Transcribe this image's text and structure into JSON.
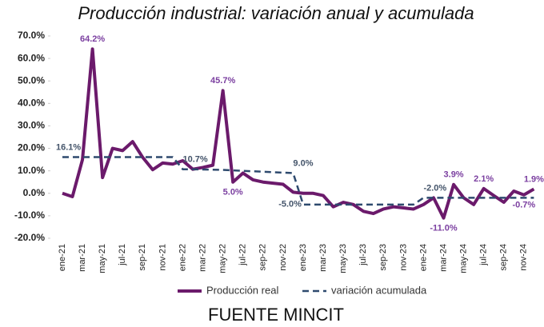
{
  "chart_data": {
    "type": "line",
    "title": "Producción industrial: variación anual y acumulada",
    "footer": "FUENTE MINCIT",
    "categories": [
      "ene-21",
      null,
      "mar-21",
      null,
      "may-21",
      null,
      "jul-21",
      null,
      "sep-21",
      null,
      "nov-21",
      null,
      "ene-22",
      null,
      "mar-22",
      null,
      "may-22",
      null,
      "jul-22",
      null,
      "sep-22",
      null,
      "nov-22",
      null,
      "ene-23",
      null,
      "mar-23",
      null,
      "may-23",
      null,
      "jul-23",
      null,
      "sep-23",
      null,
      "nov-23",
      null,
      "ene-24",
      null,
      "mar-24",
      null,
      "may-24",
      null,
      "jul-24",
      null,
      "sep-24",
      null,
      "nov-24",
      null
    ],
    "series": [
      {
        "name": "Producción real",
        "color": "#6b1a6b",
        "dash": false,
        "label_color": "#7b3fa0",
        "values": [
          0,
          -1.5,
          15,
          64.2,
          7,
          20,
          19,
          23,
          16,
          10.5,
          13.5,
          13,
          14.5,
          10.7,
          11.5,
          12.5,
          45.7,
          5.0,
          9,
          6,
          5,
          4.5,
          4,
          0.5,
          0,
          0,
          -1,
          -6,
          -4,
          -5,
          -8,
          -9,
          -7,
          -6,
          -6.5,
          -7,
          -5,
          -2,
          -11.0,
          3.9,
          -2,
          -5,
          2.1,
          -1,
          -4,
          1,
          -0.7,
          1.9
        ],
        "value_labels": [
          null,
          null,
          null,
          "64.2%",
          null,
          null,
          null,
          null,
          null,
          null,
          null,
          null,
          null,
          null,
          null,
          null,
          "45.7%",
          "5.0%",
          null,
          null,
          null,
          null,
          null,
          null,
          null,
          null,
          null,
          null,
          null,
          null,
          null,
          null,
          null,
          null,
          null,
          null,
          null,
          null,
          "-11.0%",
          "3.9%",
          null,
          null,
          "2.1%",
          null,
          null,
          null,
          "-0.7%",
          "1.9%"
        ]
      },
      {
        "name": "variación acumulada",
        "color": "#2e4a6e",
        "dash": true,
        "label_color": "#44546a",
        "values": [
          16.1,
          16.1,
          16.1,
          16.1,
          16.1,
          16.1,
          16.1,
          16.1,
          16.1,
          16.1,
          16.1,
          16.1,
          10.7,
          10.7,
          10.6,
          10.5,
          10.4,
          10.2,
          10.0,
          9.8,
          9.6,
          9.4,
          9.2,
          9.0,
          -5.0,
          -5.0,
          -5.0,
          -5.0,
          -5.0,
          -5.0,
          -5.0,
          -5.0,
          -5.0,
          -5.0,
          -5.0,
          -5.0,
          -2.0,
          -2.0,
          -2.0,
          -2.0,
          -2.0,
          -2.0,
          -2.0,
          -2.0,
          -2.0,
          -2.0,
          -2.0,
          -2.0
        ],
        "value_labels": [
          "16.1%",
          null,
          null,
          null,
          null,
          null,
          null,
          null,
          null,
          null,
          null,
          null,
          "10.7%",
          null,
          null,
          null,
          null,
          null,
          null,
          null,
          null,
          null,
          null,
          "9.0%",
          "-5.0%",
          null,
          null,
          null,
          null,
          null,
          null,
          null,
          null,
          null,
          null,
          null,
          "-2.0%",
          null,
          null,
          null,
          null,
          null,
          null,
          null,
          null,
          null,
          null,
          null
        ]
      }
    ],
    "ylim": [
      -20,
      70
    ],
    "yticks": [
      {
        "value": -20,
        "label": "-20.0%"
      },
      {
        "value": -10,
        "label": "-10.0%"
      },
      {
        "value": 0,
        "label": "0.0%"
      },
      {
        "value": 10,
        "label": "10.0%"
      },
      {
        "value": 20,
        "label": "20.0%"
      },
      {
        "value": 30,
        "label": "30.0%"
      },
      {
        "value": 40,
        "label": "40.0%"
      },
      {
        "value": 50,
        "label": "50.0%"
      },
      {
        "value": 60,
        "label": "60.0%"
      },
      {
        "value": 70,
        "label": "70.0%"
      }
    ],
    "legend": "bottom"
  }
}
